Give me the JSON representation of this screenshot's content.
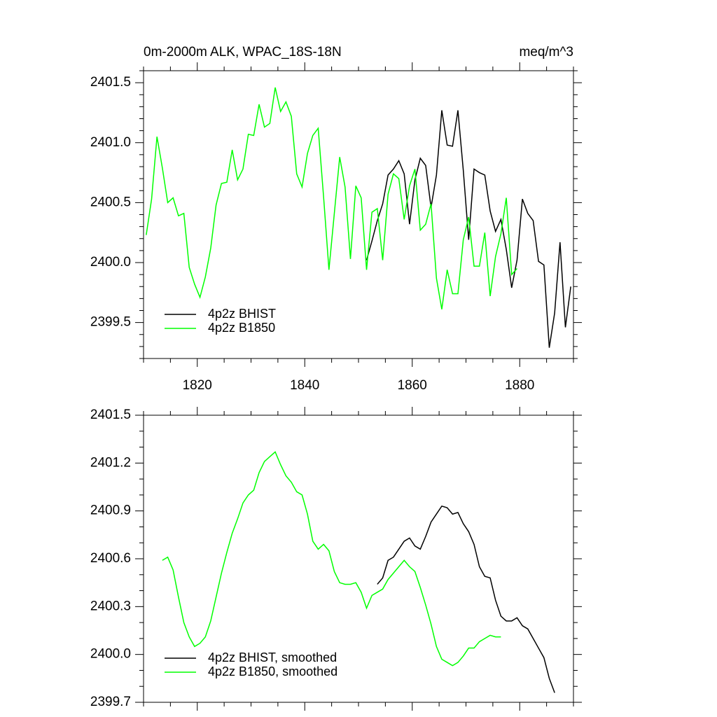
{
  "chart_data": [
    {
      "type": "line",
      "title": "0m-2000m ALK, WPAC_18S-18N",
      "units": "meq/m^3",
      "xlim": [
        1810,
        1890
      ],
      "xticks": [
        1820,
        1840,
        1860,
        1880
      ],
      "ylim": [
        2399.2,
        2401.6
      ],
      "yticks": [
        {
          "value": 2399.5,
          "label": "2399.5"
        },
        {
          "value": 2400,
          "label": "2400.0"
        },
        2400.5,
        {
          "value": 2401,
          "label": "2401.0"
        },
        2401.5
      ],
      "legend": "lower left",
      "series": [
        {
          "name": "4p2z BHIST",
          "color": "#000000",
          "x": [
            1851.5,
            1852.5,
            1853.5,
            1854.5,
            1855.5,
            1856.5,
            1857.5,
            1858.5,
            1859.5,
            1860.5,
            1861.5,
            1862.5,
            1863.5,
            1864.5,
            1865.5,
            1866.5,
            1867.5,
            1868.5,
            1869.5,
            1870.5,
            1871.5,
            1872.5,
            1873.5,
            1874.5,
            1875.5,
            1876.5,
            1877.5,
            1878.5,
            1879.5,
            1880.5,
            1881.5,
            1882.5,
            1883.5,
            1884.5,
            1885.5,
            1886.5,
            1887.5,
            1888.5,
            1889.5
          ],
          "values": [
            2400.02,
            2400.18,
            2400.35,
            2400.49,
            2400.73,
            2400.78,
            2400.85,
            2400.74,
            2400.32,
            2400.69,
            2400.87,
            2400.81,
            2400.46,
            2400.73,
            2401.27,
            2400.98,
            2400.97,
            2401.27,
            2400.77,
            2400.19,
            2400.78,
            2400.75,
            2400.73,
            2400.43,
            2400.26,
            2400.36,
            2400.11,
            2399.79,
            2400.02,
            2400.53,
            2400.41,
            2400.35,
            2400.01,
            2399.98,
            2399.29,
            2399.58,
            2400.17,
            2399.46,
            2399.8
          ]
        },
        {
          "name": "4p2z B1850",
          "color": "#00ff00",
          "x": [
            1810.5,
            1811.5,
            1812.5,
            1813.5,
            1814.5,
            1815.5,
            1816.5,
            1817.5,
            1818.5,
            1819.5,
            1820.5,
            1821.5,
            1822.5,
            1823.5,
            1824.5,
            1825.5,
            1826.5,
            1827.5,
            1828.5,
            1829.5,
            1830.5,
            1831.5,
            1832.5,
            1833.5,
            1834.5,
            1835.5,
            1836.5,
            1837.5,
            1838.5,
            1839.5,
            1840.5,
            1841.5,
            1842.5,
            1843.5,
            1844.5,
            1845.5,
            1846.5,
            1847.5,
            1848.5,
            1849.5,
            1850.5,
            1851.5,
            1852.5,
            1853.5,
            1854.5,
            1855.5,
            1856.5,
            1857.5,
            1858.5,
            1859.5,
            1860.5,
            1861.5,
            1862.5,
            1863.5,
            1864.5,
            1865.5,
            1866.5,
            1867.5,
            1868.5,
            1869.5,
            1870.5,
            1871.5,
            1872.5,
            1873.5,
            1874.5,
            1875.5,
            1876.5,
            1877.5,
            1878.5,
            1879.5
          ],
          "values": [
            2400.23,
            2400.53,
            2401.05,
            2400.79,
            2400.5,
            2400.54,
            2400.39,
            2400.41,
            2399.96,
            2399.82,
            2399.71,
            2399.88,
            2400.12,
            2400.48,
            2400.66,
            2400.67,
            2400.94,
            2400.69,
            2400.78,
            2401.07,
            2401.06,
            2401.32,
            2401.13,
            2401.16,
            2401.46,
            2401.26,
            2401.34,
            2401.22,
            2400.74,
            2400.63,
            2400.91,
            2401.06,
            2401.12,
            2400.55,
            2399.94,
            2400.41,
            2400.88,
            2400.63,
            2400.03,
            2400.64,
            2400.54,
            2399.94,
            2400.42,
            2400.45,
            2400.02,
            2400.57,
            2400.74,
            2400.7,
            2400.36,
            2400.64,
            2400.78,
            2400.27,
            2400.32,
            2400.49,
            2399.87,
            2399.61,
            2399.94,
            2399.74,
            2399.74,
            2400.19,
            2400.38,
            2399.97,
            2399.97,
            2400.25,
            2399.72,
            2400.05,
            2400.24,
            2400.54,
            2399.9,
            2399.95
          ]
        }
      ]
    },
    {
      "type": "line",
      "xlim": [
        1810,
        1890
      ],
      "ylim": [
        2399.7,
        2401.5
      ],
      "yticks": [
        2399.7,
        {
          "value": 2400,
          "label": "2400.0"
        },
        2400.3,
        2400.6,
        2400.9,
        2401.2,
        2401.5
      ],
      "legend": "lower left",
      "series": [
        {
          "name": "4p2z BHIST, smoothed",
          "color": "#000000",
          "x": [
            1853.5,
            1854.5,
            1855.5,
            1856.5,
            1857.5,
            1858.5,
            1859.5,
            1860.5,
            1861.5,
            1862.5,
            1863.5,
            1864.5,
            1865.5,
            1866.5,
            1867.5,
            1868.5,
            1869.5,
            1870.5,
            1871.5,
            1872.5,
            1873.5,
            1874.5,
            1875.5,
            1876.5,
            1877.5,
            1878.5,
            1879.5,
            1880.5,
            1881.5,
            1882.5,
            1883.5,
            1884.5,
            1885.5,
            1886.5
          ],
          "values": [
            2400.44,
            2400.48,
            2400.59,
            2400.61,
            2400.66,
            2400.71,
            2400.73,
            2400.68,
            2400.66,
            2400.74,
            2400.83,
            2400.88,
            2400.93,
            2400.92,
            2400.88,
            2400.89,
            2400.82,
            2400.77,
            2400.69,
            2400.55,
            2400.49,
            2400.48,
            2400.34,
            2400.24,
            2400.21,
            2400.21,
            2400.23,
            2400.18,
            2400.16,
            2400.1,
            2400.04,
            2399.98,
            2399.85,
            2399.76
          ]
        },
        {
          "name": "4p2z B1850, smoothed",
          "color": "#00ff00",
          "x": [
            1813.5,
            1814.5,
            1815.5,
            1816.5,
            1817.5,
            1818.5,
            1819.5,
            1820.5,
            1821.5,
            1822.5,
            1823.5,
            1824.5,
            1825.5,
            1826.5,
            1827.5,
            1828.5,
            1829.5,
            1830.5,
            1831.5,
            1832.5,
            1833.5,
            1834.5,
            1835.5,
            1836.5,
            1837.5,
            1838.5,
            1839.5,
            1840.5,
            1841.5,
            1842.5,
            1843.5,
            1844.5,
            1845.5,
            1846.5,
            1847.5,
            1848.5,
            1849.5,
            1850.5,
            1851.5,
            1852.5,
            1853.5,
            1854.5,
            1855.5,
            1856.5,
            1857.5,
            1858.5,
            1859.5,
            1860.5,
            1861.5,
            1862.5,
            1863.5,
            1864.5,
            1865.5,
            1866.5,
            1867.5,
            1868.5,
            1869.5,
            1870.5,
            1871.5,
            1872.5,
            1873.5,
            1874.5,
            1875.5,
            1876.5
          ],
          "values": [
            2400.59,
            2400.61,
            2400.53,
            2400.36,
            2400.2,
            2400.11,
            2400.05,
            2400.07,
            2400.11,
            2400.21,
            2400.36,
            2400.51,
            2400.64,
            2400.76,
            2400.85,
            2400.95,
            2401,
            2401.03,
            2401.14,
            2401.21,
            2401.24,
            2401.27,
            2401.19,
            2401.12,
            2401.08,
            2401.02,
            2401,
            2400.88,
            2400.71,
            2400.66,
            2400.69,
            2400.65,
            2400.52,
            2400.45,
            2400.44,
            2400.44,
            2400.45,
            2400.39,
            2400.29,
            2400.37,
            2400.39,
            2400.41,
            2400.47,
            2400.51,
            2400.55,
            2400.59,
            2400.55,
            2400.52,
            2400.42,
            2400.31,
            2400.19,
            2400.05,
            2399.97,
            2399.95,
            2399.93,
            2399.95,
            2399.99,
            2400.04,
            2400.04,
            2400.08,
            2400.1,
            2400.12,
            2400.11,
            2400.11
          ]
        }
      ]
    }
  ]
}
